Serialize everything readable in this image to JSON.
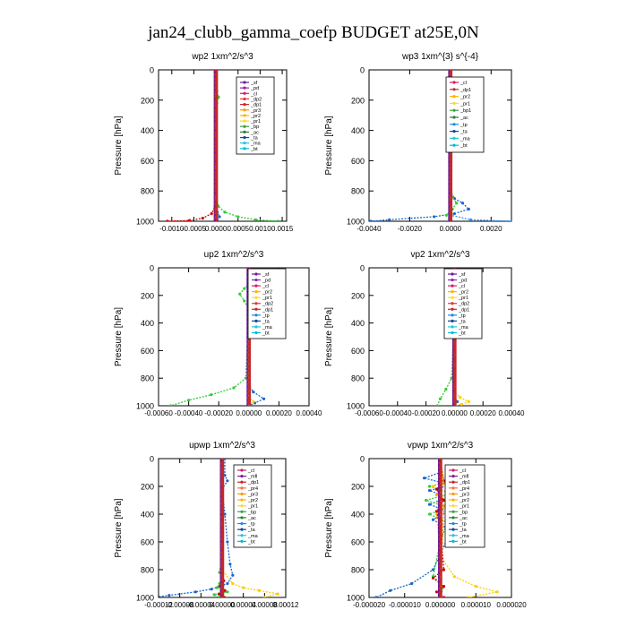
{
  "figure": {
    "title": "jan24_clubb_gamma_coefp  BUDGET at25E,0N"
  },
  "chart_data": [
    {
      "type": "line",
      "title": "wp2   1xm^2/s^3",
      "ylabel": "Pressure [hPa]",
      "xlim": [
        -0.0013,
        0.0016
      ],
      "ylim": [
        1000,
        0
      ],
      "xticks": [
        -0.001,
        -0.0005,
        0,
        0.0005,
        0.001,
        0.0015
      ],
      "xtick_labels": [
        "-0.0010",
        "-0.0005",
        "0.0000",
        "0.0005",
        "0.0010",
        "0.0015"
      ],
      "yticks": [
        0,
        200,
        400,
        600,
        800,
        1000
      ],
      "ytick_labels": [
        "0",
        "200",
        "400",
        "600",
        "800",
        "1000"
      ],
      "legend": [
        "_sf",
        "_pd",
        "_cl",
        "_dp2",
        "_dp1",
        "_pr3",
        "_pr2",
        "_pr1",
        "_bp",
        "_ac",
        "_ta",
        "_ma",
        "_bt"
      ],
      "series": [
        {
          "name": "_dp1",
          "color": "#cc0000",
          "x": [
            0,
            0,
            0,
            -2e-05,
            -0.0001,
            -0.0003,
            -0.0006,
            -0.0011
          ],
          "y": [
            0,
            400,
            800,
            900,
            950,
            980,
            995,
            1000
          ]
        },
        {
          "name": "_pr1",
          "color": "#33cc33",
          "x": [
            0,
            0,
            2e-05,
            6e-05,
            2e-05,
            0,
            0,
            5e-05,
            0.0002,
            0.0005,
            0.0009,
            0.0014
          ],
          "y": [
            0,
            100,
            140,
            180,
            220,
            260,
            800,
            900,
            940,
            970,
            990,
            1000
          ]
        },
        {
          "name": "_bp",
          "color": "#1a66cc",
          "x": [
            0,
            0,
            3e-05,
            8e-05,
            3e-05,
            0
          ],
          "y": [
            0,
            900,
            940,
            970,
            990,
            1000
          ]
        },
        {
          "name": "_cl",
          "color": "#7a1fa2",
          "x": [
            0,
            0,
            0
          ],
          "y": [
            0,
            500,
            1000
          ]
        }
      ]
    },
    {
      "type": "line",
      "title": "wp3   1xm^{3} s^{-4}",
      "ylabel": "Pressure [hPa]",
      "xlim": [
        -0.004,
        0.003
      ],
      "ylim": [
        1000,
        0
      ],
      "xticks": [
        -0.004,
        -0.002,
        0,
        0.002
      ],
      "xtick_labels": [
        "-0.0040",
        "-0.0020",
        "0.0000",
        "0.0020"
      ],
      "yticks": [
        0,
        200,
        400,
        600,
        800,
        1000
      ],
      "ytick_labels": [
        "0",
        "200",
        "400",
        "600",
        "800",
        "1000"
      ],
      "legend": [
        "_cl",
        "_dp1",
        "_pr2",
        "_pr1",
        "_bp1",
        "_ac",
        "_tp",
        "_ta",
        "_ma",
        "_bt"
      ],
      "series": [
        {
          "name": "_tp",
          "color": "#1a66cc",
          "x": [
            0,
            0,
            -0.0001,
            0,
            0,
            0.0002,
            0.0006,
            0.0009,
            0.0002,
            -0.0008,
            -0.003,
            -0.0039
          ],
          "y": [
            0,
            140,
            150,
            160,
            800,
            850,
            880,
            920,
            950,
            970,
            990,
            1000
          ]
        },
        {
          "name": "_ac",
          "color": "#33cc33",
          "x": [
            0,
            0,
            0.0001,
            0.0003,
            0.0001,
            -0.0002,
            0
          ],
          "y": [
            0,
            800,
            840,
            880,
            920,
            960,
            1000
          ]
        },
        {
          "name": "_ma",
          "color": "#3399ff",
          "x": [
            0,
            0,
            0.001,
            0.003
          ],
          "y": [
            0,
            960,
            990,
            1000
          ]
        },
        {
          "name": "_dp1",
          "color": "#cc0000",
          "x": [
            0,
            0,
            0
          ],
          "y": [
            0,
            500,
            1000
          ]
        }
      ]
    },
    {
      "type": "line",
      "title": "up2   1xm^2/s^3",
      "ylabel": "Pressure [hPa]",
      "xlim": [
        -0.0006,
        0.0004
      ],
      "ylim": [
        1000,
        0
      ],
      "xticks": [
        -0.0006,
        -0.0004,
        -0.0002,
        0,
        0.0002,
        0.0004
      ],
      "xtick_labels": [
        "-0.00060",
        "-0.00040",
        "-0.00020",
        "0.00000",
        "0.00020",
        "0.00040"
      ],
      "yticks": [
        0,
        200,
        400,
        600,
        800,
        1000
      ],
      "ytick_labels": [
        "0",
        "200",
        "400",
        "600",
        "800",
        "1000"
      ],
      "legend": [
        "_sf",
        "_pd",
        "_cl",
        "_pr2",
        "_pr1",
        "_dp2",
        "_dp1",
        "_tp",
        "_ta",
        "_ma",
        "_bt"
      ],
      "series": [
        {
          "name": "_dp1",
          "color": "#33cc33",
          "x": [
            0,
            0,
            -3e-05,
            -6e-05,
            -3e-05,
            0,
            -2e-05,
            -0.0001,
            -0.00025,
            -0.0004,
            -0.00052
          ],
          "y": [
            0,
            120,
            150,
            190,
            240,
            300,
            800,
            870,
            920,
            960,
            1000
          ]
        },
        {
          "name": "_tp",
          "color": "#1a66cc",
          "x": [
            0,
            0,
            3e-05,
            0.0001,
            4e-05,
            0
          ],
          "y": [
            0,
            850,
            900,
            950,
            980,
            1000
          ]
        },
        {
          "name": "_cl",
          "color": "#cc0000",
          "x": [
            0,
            0,
            0
          ],
          "y": [
            0,
            500,
            1000
          ]
        },
        {
          "name": "_pr1",
          "color": "#ffcc00",
          "x": [
            0,
            0,
            3e-05,
            0
          ],
          "y": [
            0,
            940,
            970,
            1000
          ]
        }
      ]
    },
    {
      "type": "line",
      "title": "vp2   1xm^2/s^3",
      "ylabel": "Pressure [hPa]",
      "xlim": [
        -0.0006,
        0.0004
      ],
      "ylim": [
        1000,
        0
      ],
      "xticks": [
        -0.0006,
        -0.0004,
        -0.0002,
        0,
        0.0002,
        0.0004
      ],
      "xtick_labels": [
        "-0.00060",
        "-0.00040",
        "-0.00020",
        "0.00000",
        "0.00020",
        "0.00040"
      ],
      "yticks": [
        0,
        200,
        400,
        600,
        800,
        1000
      ],
      "ytick_labels": [
        "0",
        "200",
        "400",
        "600",
        "800",
        "1000"
      ],
      "legend": [
        "_sf",
        "_pd",
        "_cl",
        "_pr2",
        "_pr1",
        "_dp2",
        "_dp1",
        "_tp",
        "_ta",
        "_ma",
        "_bt"
      ],
      "series": [
        {
          "name": "_dp1",
          "color": "#33cc33",
          "x": [
            0,
            0,
            -3e-05,
            -5e-05,
            -3e-05,
            0,
            -2e-05,
            -6e-05,
            -0.0001,
            -0.00012
          ],
          "y": [
            0,
            120,
            150,
            190,
            240,
            300,
            800,
            880,
            950,
            1000
          ]
        },
        {
          "name": "_pr1",
          "color": "#ffcc00",
          "x": [
            0,
            0,
            4e-05,
            0.0001,
            5e-05,
            0
          ],
          "y": [
            0,
            900,
            940,
            970,
            990,
            1000
          ]
        },
        {
          "name": "_tp",
          "color": "#1a66cc",
          "x": [
            0,
            0,
            2e-05,
            0
          ],
          "y": [
            0,
            940,
            970,
            1000
          ]
        },
        {
          "name": "_cl",
          "color": "#cc0000",
          "x": [
            0,
            0,
            0
          ],
          "y": [
            0,
            500,
            1000
          ]
        }
      ]
    },
    {
      "type": "line",
      "title": "upwp   1xm^2/s^3",
      "ylabel": "Pressure [hPa]",
      "xlim": [
        -0.00012,
        0.00012
      ],
      "ylim": [
        1000,
        0
      ],
      "xticks": [
        -0.00012,
        -8e-05,
        -4e-05,
        0,
        4e-05,
        8e-05,
        0.00012
      ],
      "xtick_labels": [
        "-0.00012",
        "-0.00008",
        "-0.00004",
        "0.00000",
        "0.00004",
        "0.00008",
        "0.00012"
      ],
      "yticks": [
        0,
        200,
        400,
        600,
        800,
        1000
      ],
      "ytick_labels": [
        "0",
        "200",
        "400",
        "600",
        "800",
        "1000"
      ],
      "legend": [
        "_cl",
        "_mfl",
        "_dp1",
        "_pr4",
        "_pr3",
        "_pr2",
        "_pr1",
        "_bp",
        "_ac",
        "_tp",
        "_ta",
        "_ma",
        "_bt"
      ],
      "series": [
        {
          "name": "_tp",
          "color": "#1a66cc",
          "x": [
            5e-06,
            5e-06,
            1e-05,
            0,
            5e-06,
            1e-05,
            1.5e-05,
            2e-05,
            1e-05,
            -2e-05,
            -5e-05,
            -0.0001,
            -0.00013
          ],
          "y": [
            0,
            120,
            160,
            220,
            400,
            600,
            760,
            840,
            900,
            940,
            960,
            985,
            1000
          ]
        },
        {
          "name": "_pr1",
          "color": "#ffcc00",
          "x": [
            0,
            0,
            -2e-06,
            0,
            0,
            2e-05,
            4e-05,
            7e-05,
            0.000105,
            8e-05
          ],
          "y": [
            0,
            120,
            160,
            220,
            800,
            900,
            930,
            950,
            975,
            1000
          ]
        },
        {
          "name": "_ac",
          "color": "#33cc33",
          "x": [
            0,
            0,
            -5e-06,
            0,
            -5e-06,
            -1e-05,
            1e-05,
            -1.5e-05,
            -5e-06
          ],
          "y": [
            0,
            700,
            820,
            860,
            900,
            930,
            960,
            980,
            1000
          ]
        },
        {
          "name": "_dp1",
          "color": "#cc0000",
          "x": [
            0,
            0,
            0,
            3e-06,
            -4e-06,
            5e-06,
            -6e-06,
            4e-06
          ],
          "y": [
            0,
            400,
            800,
            880,
            920,
            950,
            975,
            1000
          ]
        },
        {
          "name": "_cl",
          "color": "#7a1fa2",
          "x": [
            0,
            0,
            0
          ],
          "y": [
            0,
            500,
            1000
          ]
        }
      ]
    },
    {
      "type": "line",
      "title": "vpwp   1xm^2/s^3",
      "ylabel": "Pressure [hPa]",
      "xlim": [
        -2e-05,
        2e-05
      ],
      "ylim": [
        1000,
        0
      ],
      "xticks": [
        -2e-05,
        -1e-05,
        0,
        1e-05,
        2e-05
      ],
      "xtick_labels": [
        "-0.000020",
        "-0.000010",
        "0.000000",
        "0.000010",
        "0.000020"
      ],
      "yticks": [
        0,
        200,
        400,
        600,
        800,
        1000
      ],
      "ytick_labels": [
        "0",
        "200",
        "400",
        "600",
        "800",
        "1000"
      ],
      "legend": [
        "_cl",
        "_mfl",
        "_dp1",
        "_pr4",
        "_pr3",
        "_pr2",
        "_pr1",
        "_bp",
        "_ac",
        "_tp",
        "_ta",
        "_ma",
        "_bt"
      ],
      "series": [
        {
          "name": "_tp",
          "color": "#1a66cc",
          "x": [
            0,
            0,
            -4.5e-06,
            3e-06,
            -3e-06,
            2e-06,
            -3e-06,
            2e-06,
            -2e-06,
            3e-06,
            -2e-06,
            -8e-06,
            -1.4e-05,
            -1.8e-05
          ],
          "y": [
            0,
            100,
            140,
            190,
            230,
            280,
            330,
            380,
            440,
            520,
            800,
            900,
            950,
            1000
          ]
        },
        {
          "name": "_ac",
          "color": "#33cc33",
          "x": [
            0,
            0,
            3e-06,
            -3e-06,
            3e-06,
            -4e-06,
            2e-06,
            -3e-06,
            2e-06,
            0,
            -2e-06,
            1e-06,
            0
          ],
          "y": [
            0,
            120,
            160,
            200,
            250,
            300,
            350,
            400,
            460,
            600,
            850,
            920,
            1000
          ]
        },
        {
          "name": "_pr1",
          "color": "#ffcc00",
          "x": [
            0,
            0,
            2e-06,
            -2e-06,
            2e-06,
            -1e-06,
            0,
            4e-06,
            1e-05,
            1.6e-05,
            8e-06
          ],
          "y": [
            0,
            120,
            150,
            200,
            300,
            400,
            700,
            850,
            920,
            960,
            1000
          ]
        },
        {
          "name": "_dp1",
          "color": "#cc0000",
          "x": [
            0,
            1e-06,
            -1e-06,
            1e-06,
            -1e-06,
            0,
            1e-06,
            -2e-06,
            1e-06,
            -1e-06,
            1e-06
          ],
          "y": [
            0,
            160,
            220,
            300,
            380,
            500,
            800,
            860,
            920,
            960,
            1000
          ]
        },
        {
          "name": "_pr2",
          "color": "#ff9900",
          "x": [
            0,
            1e-06,
            -1e-06,
            1e-06,
            0
          ],
          "y": [
            0,
            180,
            260,
            340,
            1000
          ]
        },
        {
          "name": "_cl",
          "color": "#7a1fa2",
          "x": [
            0,
            0,
            0
          ],
          "y": [
            0,
            500,
            1000
          ]
        }
      ]
    }
  ]
}
